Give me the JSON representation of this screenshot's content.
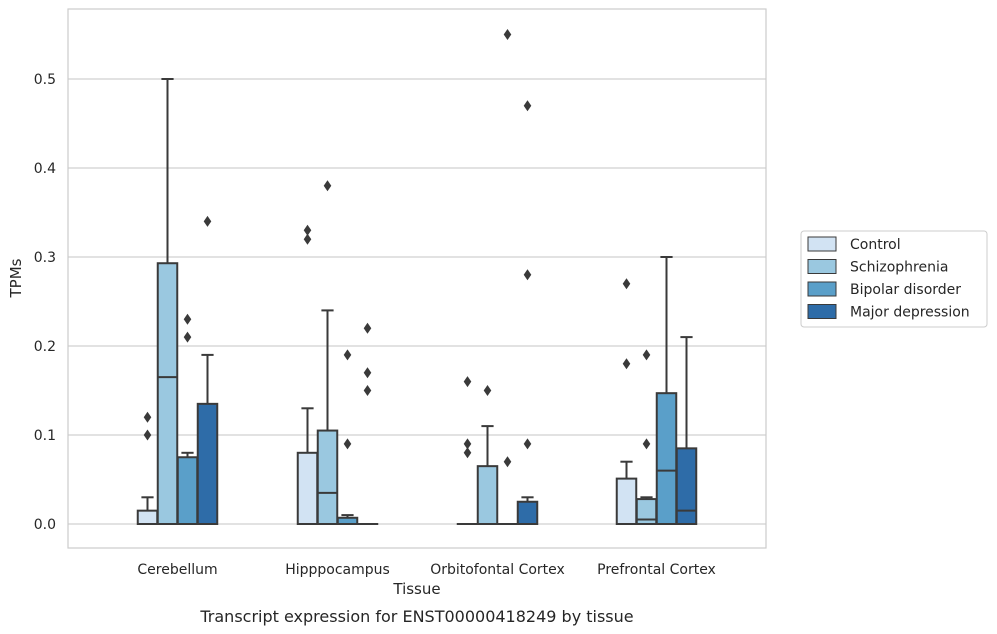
{
  "chart_data": {
    "type": "box",
    "xlabel": "Tissue",
    "ylabel": "TPMs",
    "caption": "Transcript expression for ENST00000418249 by tissue",
    "ylim": [
      -0.027,
      0.58
    ],
    "yticks": [
      0.0,
      0.1,
      0.2,
      0.3,
      0.4,
      0.5
    ],
    "ytick_labels": [
      "0.0",
      "0.1",
      "0.2",
      "0.3",
      "0.4",
      "0.5"
    ],
    "grid": "horizontal",
    "legend_position": "right",
    "categories": [
      "Cerebellum",
      "Hipppocampus",
      "Orbitofontal Cortex",
      "Prefrontal Cortex"
    ],
    "series": [
      {
        "name": "Control",
        "color": "#d2e3f3",
        "boxes": [
          {
            "category": "Cerebellum",
            "whisker_low": 0.0,
            "q1": 0.0,
            "median": 0.0,
            "q3": 0.015,
            "whisker_high": 0.03,
            "outliers": [
              0.1,
              0.12
            ]
          },
          {
            "category": "Hipppocampus",
            "whisker_low": 0.0,
            "q1": 0.0,
            "median": 0.0,
            "q3": 0.08,
            "whisker_high": 0.13,
            "outliers": [
              0.32,
              0.33
            ]
          },
          {
            "category": "Orbitofontal Cortex",
            "whisker_low": 0.0,
            "q1": 0.0,
            "median": 0.0,
            "q3": 0.0,
            "whisker_high": 0.0,
            "outliers": [
              0.08,
              0.09,
              0.16
            ]
          },
          {
            "category": "Prefrontal Cortex",
            "whisker_low": 0.0,
            "q1": 0.0,
            "median": 0.0,
            "q3": 0.051,
            "whisker_high": 0.07,
            "outliers": [
              0.18,
              0.27
            ]
          }
        ]
      },
      {
        "name": "Schizophrenia",
        "color": "#9ac8e0",
        "boxes": [
          {
            "category": "Cerebellum",
            "whisker_low": 0.0,
            "q1": 0.0,
            "median": 0.165,
            "q3": 0.293,
            "whisker_high": 0.5,
            "outliers": []
          },
          {
            "category": "Hipppocampus",
            "whisker_low": 0.0,
            "q1": 0.0,
            "median": 0.035,
            "q3": 0.105,
            "whisker_high": 0.24,
            "outliers": [
              0.38
            ]
          },
          {
            "category": "Orbitofontal Cortex",
            "whisker_low": 0.0,
            "q1": 0.0,
            "median": 0.0,
            "q3": 0.065,
            "whisker_high": 0.11,
            "outliers": [
              0.15
            ]
          },
          {
            "category": "Prefrontal Cortex",
            "whisker_low": 0.0,
            "q1": 0.0,
            "median": 0.005,
            "q3": 0.028,
            "whisker_high": 0.03,
            "outliers": [
              0.09,
              0.19
            ]
          }
        ]
      },
      {
        "name": "Bipolar disorder",
        "color": "#5a9fc9",
        "boxes": [
          {
            "category": "Cerebellum",
            "whisker_low": 0.0,
            "q1": 0.0,
            "median": 0.0,
            "q3": 0.075,
            "whisker_high": 0.08,
            "outliers": [
              0.21,
              0.23
            ]
          },
          {
            "category": "Hipppocampus",
            "whisker_low": 0.0,
            "q1": 0.0,
            "median": 0.0,
            "q3": 0.007,
            "whisker_high": 0.01,
            "outliers": [
              0.09,
              0.19
            ]
          },
          {
            "category": "Orbitofontal Cortex",
            "whisker_low": 0.0,
            "q1": 0.0,
            "median": 0.0,
            "q3": 0.0,
            "whisker_high": 0.0,
            "outliers": [
              0.07,
              0.55
            ]
          },
          {
            "category": "Prefrontal Cortex",
            "whisker_low": 0.0,
            "q1": 0.0,
            "median": 0.06,
            "q3": 0.147,
            "whisker_high": 0.3,
            "outliers": []
          }
        ]
      },
      {
        "name": "Major depression",
        "color": "#2e6ca8",
        "boxes": [
          {
            "category": "Cerebellum",
            "whisker_low": 0.0,
            "q1": 0.0,
            "median": 0.0,
            "q3": 0.135,
            "whisker_high": 0.19,
            "outliers": [
              0.34
            ]
          },
          {
            "category": "Hipppocampus",
            "whisker_low": 0.0,
            "q1": 0.0,
            "median": 0.0,
            "q3": 0.0,
            "whisker_high": 0.0,
            "outliers": [
              0.15,
              0.17,
              0.22
            ]
          },
          {
            "category": "Orbitofontal Cortex",
            "whisker_low": 0.0,
            "q1": 0.0,
            "median": 0.0,
            "q3": 0.025,
            "whisker_high": 0.03,
            "outliers": [
              0.09,
              0.28,
              0.47
            ]
          },
          {
            "category": "Prefrontal Cortex",
            "whisker_low": 0.0,
            "q1": 0.0,
            "median": 0.015,
            "q3": 0.085,
            "whisker_high": 0.21,
            "outliers": []
          }
        ]
      }
    ],
    "style": {
      "line_color": "#3a3a3a",
      "grid_color": "#d0d0d0",
      "frame_color": "#cccccc"
    }
  }
}
